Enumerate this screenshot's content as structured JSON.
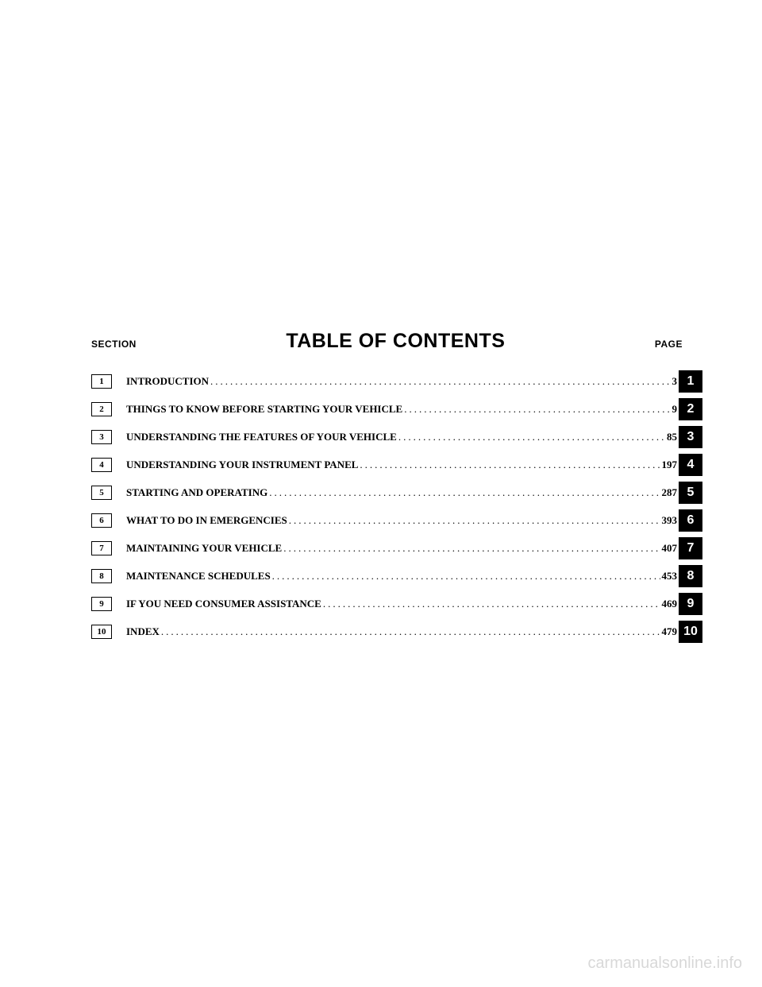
{
  "header": {
    "section_label": "SECTION",
    "title": "TABLE OF CONTENTS",
    "page_label": "PAGE"
  },
  "entries": [
    {
      "section": "1",
      "title": "INTRODUCTION",
      "page": "3",
      "tab": "1"
    },
    {
      "section": "2",
      "title": "THINGS TO KNOW BEFORE STARTING YOUR VEHICLE",
      "page": "9",
      "tab": "2"
    },
    {
      "section": "3",
      "title": "UNDERSTANDING THE FEATURES OF YOUR VEHICLE",
      "page": "85",
      "tab": "3"
    },
    {
      "section": "4",
      "title": "UNDERSTANDING YOUR INSTRUMENT PANEL",
      "page": "197",
      "tab": "4"
    },
    {
      "section": "5",
      "title": "STARTING AND OPERATING",
      "page": "287",
      "tab": "5"
    },
    {
      "section": "6",
      "title": "WHAT TO DO IN EMERGENCIES",
      "page": "393",
      "tab": "6"
    },
    {
      "section": "7",
      "title": "MAINTAINING YOUR VEHICLE",
      "page": "407",
      "tab": "7"
    },
    {
      "section": "8",
      "title": "MAINTENANCE SCHEDULES",
      "page": "453",
      "tab": "8"
    },
    {
      "section": "9",
      "title": "IF YOU NEED CONSUMER ASSISTANCE",
      "page": "469",
      "tab": "9"
    },
    {
      "section": "10",
      "title": "INDEX",
      "page": "479",
      "tab": "10"
    }
  ],
  "watermark": "carmanualsonline.info",
  "styling": {
    "background_color": "#ffffff",
    "text_color": "#000000",
    "tab_bg_color": "#000000",
    "tab_text_color": "#ffffff",
    "watermark_color": "#d8d8d8",
    "title_fontsize": 25,
    "label_fontsize": 12,
    "entry_fontsize": 13,
    "tab_fontsize": 16,
    "watermark_fontsize": 20
  }
}
